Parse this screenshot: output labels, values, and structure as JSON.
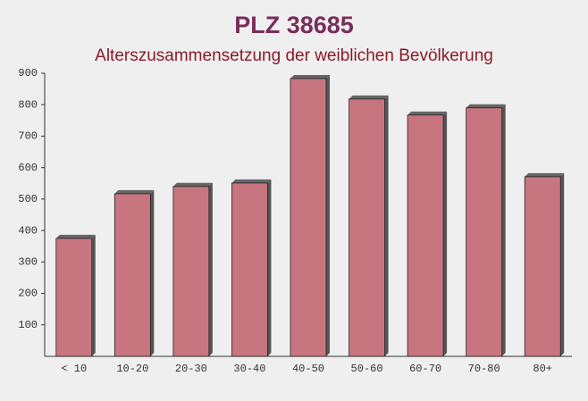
{
  "chart_data": {
    "type": "bar",
    "title": "PLZ 38685",
    "subtitle": "Alterszusammensetzung der weiblichen Bevölkerung",
    "categories": [
      "< 10",
      "10-20",
      "20-30",
      "30-40",
      "40-50",
      "50-60",
      "60-70",
      "70-80",
      "80+"
    ],
    "values": [
      375,
      517,
      540,
      551,
      883,
      818,
      767,
      790,
      571
    ],
    "color": "#c0606b",
    "ylim": [
      0,
      900
    ],
    "yticks": [
      100,
      200,
      300,
      400,
      500,
      600,
      700,
      800,
      900
    ],
    "grid": false
  }
}
